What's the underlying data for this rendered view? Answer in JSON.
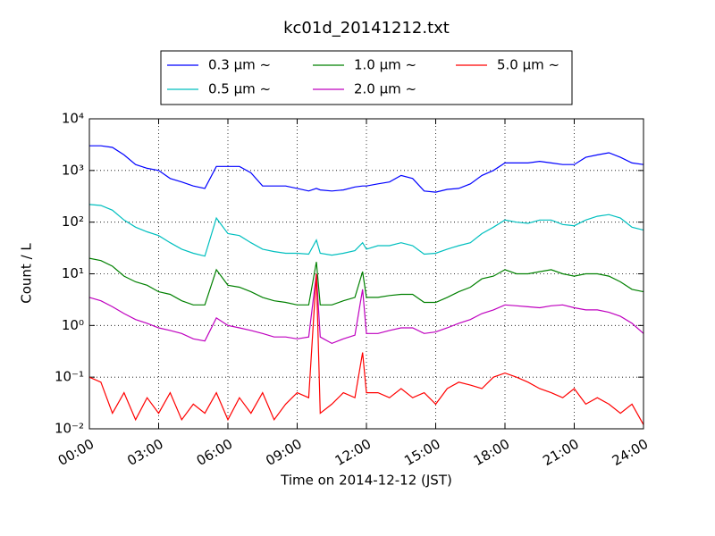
{
  "chart_data": {
    "type": "line",
    "title": "kc01d_20141212.txt",
    "xlabel": "Time on 2014-12-12 (JST)",
    "ylabel": "Count / L",
    "yscale": "log",
    "grid": true,
    "legend_loc": "top",
    "x": [
      "00:00",
      "00:30",
      "01:00",
      "01:30",
      "02:00",
      "02:30",
      "03:00",
      "03:30",
      "04:00",
      "04:30",
      "05:00",
      "05:30",
      "06:00",
      "06:30",
      "07:00",
      "07:30",
      "08:00",
      "08:30",
      "09:00",
      "09:30",
      "09:50",
      "10:00",
      "10:30",
      "11:00",
      "11:30",
      "11:50",
      "12:00",
      "12:30",
      "13:00",
      "13:30",
      "14:00",
      "14:30",
      "15:00",
      "15:30",
      "16:00",
      "16:30",
      "17:00",
      "17:30",
      "18:00",
      "18:30",
      "19:00",
      "19:30",
      "20:00",
      "20:30",
      "21:00",
      "21:30",
      "22:00",
      "22:30",
      "23:00",
      "23:30",
      "24:00"
    ],
    "xlim": [
      "00:00",
      "24:00"
    ],
    "xticks": [
      "00:00",
      "03:00",
      "06:00",
      "09:00",
      "12:00",
      "15:00",
      "18:00",
      "21:00",
      "24:00"
    ],
    "ylim": [
      0.01,
      10000
    ],
    "yticks": [
      {
        "value": 0.01,
        "label": "10⁻²"
      },
      {
        "value": 0.1,
        "label": "10⁻¹"
      },
      {
        "value": 1,
        "label": "10⁰"
      },
      {
        "value": 10,
        "label": "10¹"
      },
      {
        "value": 100,
        "label": "10²"
      },
      {
        "value": 1000,
        "label": "10³"
      },
      {
        "value": 10000,
        "label": "10⁴"
      }
    ],
    "series": [
      {
        "name": "0.3 μm ~",
        "color": "#0000ff",
        "values": [
          3000,
          3000,
          2800,
          2000,
          1300,
          1100,
          1000,
          700,
          600,
          500,
          450,
          1200,
          1200,
          1200,
          900,
          500,
          500,
          500,
          450,
          400,
          450,
          420,
          400,
          420,
          480,
          500,
          500,
          550,
          600,
          800,
          700,
          400,
          380,
          430,
          450,
          550,
          800,
          1000,
          1400,
          1400,
          1400,
          1500,
          1400,
          1300,
          1300,
          1800,
          2000,
          2200,
          1800,
          1400,
          1300
        ]
      },
      {
        "name": "0.5 μm ~",
        "color": "#00bfbf",
        "values": [
          220,
          210,
          170,
          110,
          80,
          65,
          55,
          40,
          30,
          25,
          22,
          120,
          60,
          55,
          40,
          30,
          27,
          25,
          25,
          24,
          45,
          25,
          23,
          25,
          28,
          40,
          30,
          35,
          35,
          40,
          35,
          24,
          25,
          30,
          35,
          40,
          60,
          80,
          110,
          100,
          95,
          110,
          110,
          90,
          85,
          110,
          130,
          140,
          120,
          80,
          70
        ]
      },
      {
        "name": "1.0 μm ~",
        "color": "#008000",
        "values": [
          20,
          18,
          14,
          9,
          7,
          6,
          4.5,
          4,
          3,
          2.5,
          2.5,
          12,
          6,
          5.5,
          4.5,
          3.5,
          3,
          2.8,
          2.5,
          2.5,
          17,
          2.5,
          2.5,
          3,
          3.5,
          11,
          3.5,
          3.5,
          3.8,
          4,
          4,
          2.8,
          2.8,
          3.5,
          4.5,
          5.5,
          8,
          9,
          12,
          10,
          10,
          11,
          12,
          10,
          9,
          10,
          10,
          9,
          7,
          5,
          4.5
        ]
      },
      {
        "name": "2.0 μm ~",
        "color": "#bf00bf",
        "values": [
          3.5,
          3,
          2.3,
          1.7,
          1.3,
          1.1,
          0.9,
          0.8,
          0.7,
          0.55,
          0.5,
          1.4,
          1,
          0.9,
          0.8,
          0.7,
          0.6,
          0.6,
          0.55,
          0.6,
          10,
          0.6,
          0.45,
          0.55,
          0.65,
          5,
          0.7,
          0.7,
          0.8,
          0.9,
          0.9,
          0.7,
          0.75,
          0.9,
          1.1,
          1.3,
          1.7,
          2,
          2.5,
          2.4,
          2.3,
          2.2,
          2.4,
          2.5,
          2.2,
          2,
          2,
          1.8,
          1.5,
          1.1,
          0.7
        ]
      },
      {
        "name": "5.0 μm ~",
        "color": "#ff0000",
        "values": [
          0.1,
          0.08,
          0.02,
          0.05,
          0.015,
          0.04,
          0.02,
          0.05,
          0.015,
          0.03,
          0.02,
          0.05,
          0.015,
          0.04,
          0.02,
          0.05,
          0.015,
          0.03,
          0.05,
          0.04,
          10,
          0.02,
          0.03,
          0.05,
          0.04,
          0.3,
          0.05,
          0.05,
          0.04,
          0.06,
          0.04,
          0.05,
          0.03,
          0.06,
          0.08,
          0.07,
          0.06,
          0.1,
          0.12,
          0.1,
          0.08,
          0.06,
          0.05,
          0.04,
          0.06,
          0.03,
          0.04,
          0.03,
          0.02,
          0.03,
          0.012
        ]
      }
    ]
  }
}
